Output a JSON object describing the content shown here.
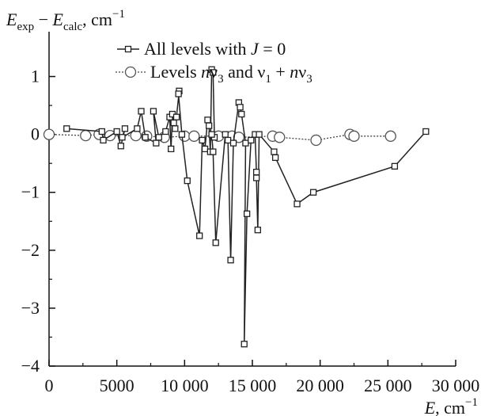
{
  "chart_data": {
    "type": "scatter",
    "ylabel": {
      "main": "E",
      "sub1": "exp",
      "op": " − ",
      "main2": "E",
      "sub2": "calc",
      "unit": ", cm",
      "sup": "−1"
    },
    "xlabel": {
      "main": "E",
      "unit": ", cm",
      "sup": "−1"
    },
    "xlim": [
      0,
      30000
    ],
    "ylim": [
      -4,
      1.5
    ],
    "x_ticks": [
      0,
      5000,
      10000,
      15000,
      20000,
      25000,
      30000
    ],
    "x_tick_labels": [
      "0",
      "5000",
      "10 000",
      "15 000",
      "20 000",
      "25 000",
      "30 000"
    ],
    "y_ticks": [
      1,
      0,
      -1,
      -2,
      -3,
      -4
    ],
    "y_tick_labels": [
      "1",
      "0",
      "−1",
      "−2",
      "−3",
      "−4"
    ],
    "grid": false,
    "legend_position": "top",
    "series": [
      {
        "name_parts": [
          "All levels with ",
          "J",
          " = 0"
        ],
        "marker": "square",
        "line": "solid",
        "x": [
          1300,
          3900,
          4000,
          5000,
          5300,
          5600,
          5400,
          6500,
          6800,
          7100,
          7900,
          7700,
          8100,
          8600,
          8900,
          9000,
          9100,
          9200,
          9300,
          9400,
          9600,
          9550,
          9800,
          10200,
          11100,
          11300,
          11500,
          11700,
          11800,
          11900,
          12000,
          12100,
          12200,
          12000,
          12100,
          12300,
          13000,
          13200,
          13400,
          13600,
          14000,
          14100,
          14200,
          14500,
          14400,
          14600,
          14900,
          15200,
          15300,
          15300,
          15400,
          15500,
          16600,
          16700,
          18300,
          19500,
          25500,
          27800
        ],
        "y": [
          0.1,
          0.05,
          -0.1,
          0.05,
          -0.2,
          0.1,
          -0.05,
          0.1,
          0.4,
          -0.05,
          -0.15,
          0.4,
          -0.05,
          0.05,
          0.3,
          -0.25,
          0.35,
          0.2,
          0.1,
          0.3,
          0.75,
          0.7,
          0.0,
          -0.8,
          -1.75,
          -0.1,
          -0.25,
          0.25,
          0.15,
          -0.3,
          1.12,
          1.07,
          -0.05,
          0.0,
          -0.3,
          -1.87,
          0.0,
          -0.1,
          -2.17,
          -0.15,
          0.55,
          0.47,
          0.35,
          -0.15,
          -3.62,
          -1.37,
          -0.1,
          0.0,
          -0.65,
          -0.75,
          -1.65,
          0.0,
          -0.3,
          -0.4,
          -1.2,
          -1.0,
          -0.55,
          0.05
        ]
      },
      {
        "name_parts": [
          "Levels ",
          "n",
          "ν",
          "3",
          " and ν",
          "1",
          " + ",
          "n",
          "ν",
          "3"
        ],
        "marker": "circle",
        "line": "dotted",
        "x": [
          0,
          2700,
          3700,
          4500,
          6400,
          7200,
          8500,
          10000,
          10700,
          12500,
          13500,
          14000,
          16500,
          17000,
          19700,
          22200,
          22500,
          25200
        ],
        "y": [
          0,
          -0.02,
          0,
          -0.02,
          -0.02,
          -0.03,
          -0.05,
          -0.03,
          -0.03,
          -0.03,
          -0.03,
          -0.05,
          -0.03,
          -0.05,
          -0.1,
          0.0,
          -0.03,
          -0.03
        ]
      }
    ]
  }
}
